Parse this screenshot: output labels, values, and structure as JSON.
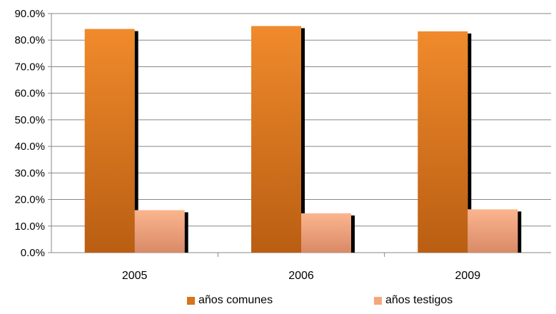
{
  "chart_data": {
    "type": "bar",
    "categories": [
      "2005",
      "2006",
      "2009"
    ],
    "series": [
      {
        "name": "años comunes",
        "values": [
          84.2,
          85.3,
          83.3
        ],
        "color": "#e07a1f"
      },
      {
        "name": "años testigos",
        "values": [
          16.0,
          14.8,
          16.3
        ],
        "color": "#f5a77c"
      }
    ],
    "ylim": [
      0,
      90
    ],
    "yticks": [
      "0.0%",
      "10.0%",
      "20.0%",
      "30.0%",
      "40.0%",
      "50.0%",
      "60.0%",
      "70.0%",
      "80.0%",
      "90.0%"
    ],
    "grid": true,
    "legend_position": "bottom",
    "title": "",
    "xlabel": "",
    "ylabel": ""
  }
}
